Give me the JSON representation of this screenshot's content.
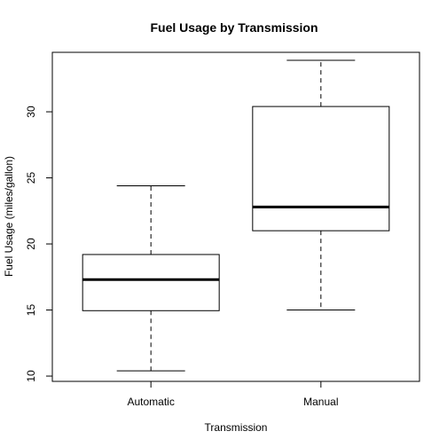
{
  "chart_data": {
    "type": "boxplot",
    "title": "Fuel Usage by Transmission",
    "xlabel": "Transmission",
    "ylabel": "Fuel Usage (miles/gallon)",
    "ylim": [
      9.6,
      34.5
    ],
    "yticks": [
      10,
      15,
      20,
      25,
      30
    ],
    "categories": [
      "Automatic",
      "Manual"
    ],
    "series": [
      {
        "category": "Automatic",
        "min": 10.4,
        "q1": 14.95,
        "median": 17.3,
        "q3": 19.2,
        "max": 24.4
      },
      {
        "category": "Manual",
        "min": 15.0,
        "q1": 21.0,
        "median": 22.8,
        "q3": 30.4,
        "max": 33.9
      }
    ],
    "grid": false,
    "legend": "none"
  }
}
